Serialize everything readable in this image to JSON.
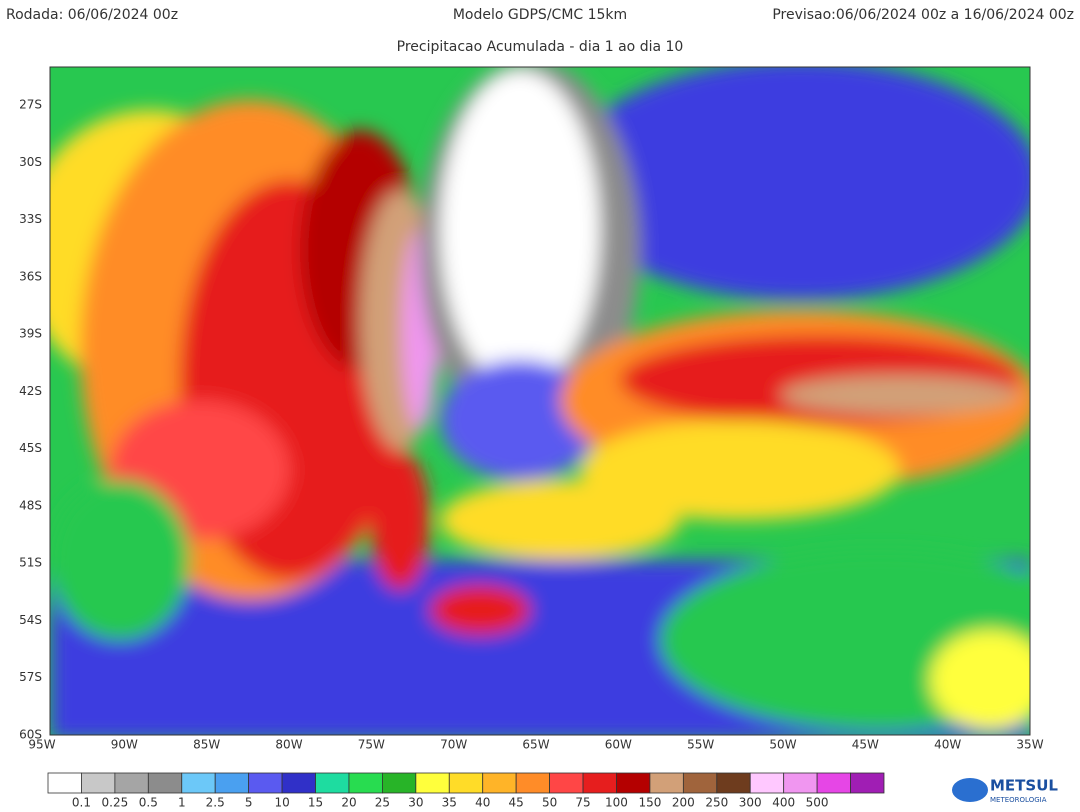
{
  "header": {
    "run": "Rodada: 06/06/2024 00z",
    "model": "Modelo GDPS/CMC 15km",
    "forecast": "Previsao:06/06/2024 00z a 16/06/2024 00z",
    "subtitle": "Precipitacao Acumulada - dia 1 ao dia 10"
  },
  "map": {
    "latitude_labels": [
      "27S",
      "30S",
      "33S",
      "36S",
      "39S",
      "42S",
      "45S",
      "48S",
      "51S",
      "54S",
      "57S",
      "60S"
    ],
    "longitude_labels": [
      "95W",
      "90W",
      "85W",
      "80W",
      "75W",
      "70W",
      "65W",
      "60W",
      "55W",
      "50W",
      "45W",
      "40W",
      "35W"
    ]
  },
  "colorbar": {
    "colors": [
      "#ffffff",
      "#c8c8c8",
      "#a5a5a5",
      "#8c8c8c",
      "#6cc8f8",
      "#4aa0f0",
      "#5a5af0",
      "#3030c8",
      "#1edca0",
      "#28dc50",
      "#28b428",
      "#ffff3c",
      "#ffdc28",
      "#ffb428",
      "#ff8c28",
      "#ff4646",
      "#e61e1e",
      "#b40000",
      "#d2a078",
      "#a0643c",
      "#6e3c1e",
      "#ffc8ff",
      "#f096f0",
      "#e646e6",
      "#a01eb4"
    ],
    "labels": [
      "0.1",
      "0.25",
      "0.5",
      "1",
      "2.5",
      "5",
      "10",
      "15",
      "20",
      "25",
      "30",
      "35",
      "40",
      "45",
      "50",
      "75",
      "100",
      "150",
      "200",
      "250",
      "300",
      "400",
      "500"
    ]
  },
  "logo": {
    "name": "METSUL",
    "tagline": "METEOROLOGIA"
  }
}
